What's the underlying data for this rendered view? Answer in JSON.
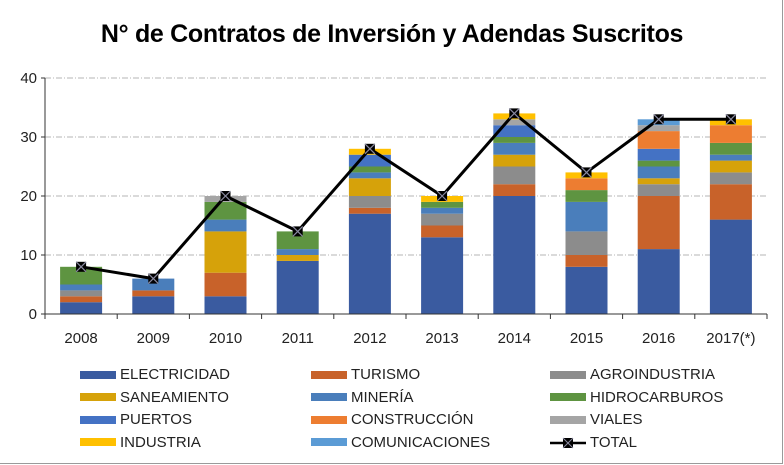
{
  "chart_data": {
    "type": "bar",
    "stacked": true,
    "title": "N° de Contratos de Inversión y Adendas Suscritos",
    "xlabel": "",
    "ylabel": "",
    "ylim": [
      0,
      40
    ],
    "yticks": [
      0,
      10,
      20,
      30,
      40
    ],
    "grid": true,
    "legend_position": "bottom",
    "categories": [
      "2008",
      "2009",
      "2010",
      "2011",
      "2012",
      "2013",
      "2014",
      "2015",
      "2016",
      "2017(*)"
    ],
    "series": [
      {
        "name": "ELECTRICIDAD",
        "color": "#3A5BA0",
        "values": [
          2,
          3,
          3,
          9,
          17,
          13,
          20,
          8,
          11,
          16
        ]
      },
      {
        "name": "TURISMO",
        "color": "#C8622A",
        "values": [
          1,
          1,
          4,
          0,
          1,
          2,
          2,
          2,
          9,
          6
        ]
      },
      {
        "name": "AGROINDUSTRIA",
        "color": "#8C8C8C",
        "values": [
          1,
          0,
          0,
          0,
          2,
          2,
          3,
          4,
          2,
          2
        ]
      },
      {
        "name": "SANEAMIENTO",
        "color": "#D6A20A",
        "values": [
          0,
          0,
          7,
          1,
          3,
          0,
          2,
          0,
          1,
          2
        ]
      },
      {
        "name": "MINERÍA",
        "color": "#4A7EBB",
        "values": [
          1,
          2,
          2,
          1,
          1,
          1,
          2,
          5,
          2,
          1
        ]
      },
      {
        "name": "HIDROCARBUROS",
        "color": "#5E9441",
        "values": [
          3,
          0,
          3,
          3,
          1,
          1,
          1,
          2,
          1,
          2
        ]
      },
      {
        "name": "PUERTOS",
        "color": "#4472C4",
        "values": [
          0,
          0,
          0,
          0,
          2,
          0,
          2,
          0,
          2,
          0
        ]
      },
      {
        "name": "CONSTRUCCIÓN",
        "color": "#ED7D31",
        "values": [
          0,
          0,
          0,
          0,
          0,
          0,
          0,
          2,
          3,
          3
        ]
      },
      {
        "name": "VIALES",
        "color": "#A5A5A5",
        "values": [
          0,
          0,
          1,
          0,
          0,
          0,
          1,
          0,
          1,
          0
        ]
      },
      {
        "name": "INDUSTRIA",
        "color": "#FFC000",
        "values": [
          0,
          0,
          0,
          0,
          1,
          1,
          1,
          1,
          0,
          1
        ]
      },
      {
        "name": "COMUNICACIONES",
        "color": "#5B9BD5",
        "values": [
          0,
          0,
          0,
          0,
          0,
          0,
          0,
          0,
          1,
          0
        ]
      }
    ],
    "line_series": {
      "name": "TOTAL",
      "color": "#000000",
      "marker": "x-square",
      "values": [
        8,
        6,
        20,
        14,
        28,
        20,
        34,
        24,
        33,
        33
      ]
    }
  }
}
